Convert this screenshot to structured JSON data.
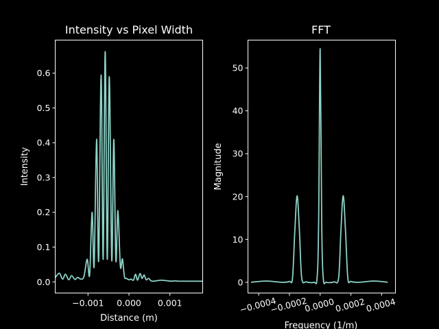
{
  "chart_data": [
    {
      "type": "line",
      "title": "Intensity vs Pixel Width",
      "xlabel": "Distance (m)",
      "ylabel": "Intensity",
      "xlim": [
        -0.0018,
        0.0018
      ],
      "ylim": [
        -0.032,
        0.695
      ],
      "xticks": [
        -0.001,
        0.0,
        0.001
      ],
      "xtick_labels": [
        "−0.001",
        "0.000",
        "0.001"
      ],
      "yticks": [
        0.0,
        0.1,
        0.2,
        0.3,
        0.4,
        0.5,
        0.6
      ],
      "ytick_labels": [
        "0.0",
        "0.1",
        "0.2",
        "0.3",
        "0.4",
        "0.5",
        "0.6"
      ],
      "grid": false,
      "line_color": "#8dd3c7",
      "series": [
        {
          "x": [
            -0.0018,
            -0.0017,
            -0.00162,
            -0.00155,
            -0.00147,
            -0.0014,
            -0.00132,
            -0.00125,
            -0.00118,
            -0.0011,
            -0.00102,
            -0.00096,
            -0.0009,
            -0.00085,
            -0.00079,
            -0.00074,
            -0.00068,
            -0.00063,
            -0.00058,
            -0.00053,
            -0.00048,
            -0.00042,
            -0.00037,
            -0.00032,
            -0.00027,
            -0.00021,
            -0.00016,
            -0.00011,
            -6e-05,
            0.0,
            5e-05,
            0.00011,
            0.00016,
            0.00021,
            0.00027,
            0.00032,
            0.00037,
            0.00042,
            0.00048,
            0.00054,
            0.0006,
            0.00066,
            0.00072,
            0.00079,
            0.00087,
            0.00095,
            0.00103,
            0.00112,
            0.0012,
            0.00128,
            0.00136,
            0.00144,
            0.00152,
            0.0016,
            0.0017,
            0.0018
          ],
          "y": [
            0.012,
            0.025,
            0.008,
            0.022,
            0.006,
            0.018,
            0.007,
            0.013,
            0.008,
            0.015,
            0.065,
            0.02,
            0.2,
            0.045,
            0.41,
            0.06,
            0.595,
            0.065,
            0.662,
            0.065,
            0.59,
            0.062,
            0.41,
            0.062,
            0.205,
            0.045,
            0.066,
            0.015,
            0.01,
            0.006,
            0.008,
            0.005,
            0.022,
            0.005,
            0.024,
            0.01,
            0.02,
            0.006,
            0.01,
            0.003,
            0.002,
            0.003,
            0.004,
            0.005,
            0.004,
            0.003,
            0.002,
            0.003,
            0.002,
            0.002,
            0.002,
            0.002,
            0.002,
            0.002,
            0.002,
            0.002
          ]
        }
      ]
    },
    {
      "type": "line",
      "title": "FFT",
      "xlabel": "Frequency (1/m)",
      "ylabel": "Magnitude",
      "xlim": [
        -0.00047,
        0.00049
      ],
      "ylim": [
        -2.5,
        56.5
      ],
      "xticks": [
        -0.0004,
        -0.0002,
        0.0,
        0.0002,
        0.0004
      ],
      "xtick_labels": [
        "−0.0004",
        "−0.0002",
        "0.0000",
        "0.0002",
        "0.0004"
      ],
      "yticks": [
        0,
        10,
        20,
        30,
        40,
        50
      ],
      "ytick_labels": [
        "0",
        "10",
        "20",
        "30",
        "40",
        "50"
      ],
      "xtick_rotation": -15,
      "grid": false,
      "line_color": "#8dd3c7",
      "series": [
        {
          "x": [
            -0.00045,
            -0.00035,
            -0.00025,
            -0.0002,
            -0.00018,
            -0.000165,
            -0.00015,
            -0.000135,
            -0.00012,
            -9e-05,
            -4e-05,
            -2e-05,
            -1e-05,
            0.0,
            1e-05,
            2e-05,
            4e-05,
            9e-05,
            0.00012,
            0.000135,
            0.00015,
            0.000165,
            0.00018,
            0.0002,
            0.00025,
            0.00035,
            0.00044
          ],
          "y": [
            0.0,
            0.3,
            0.0,
            0.2,
            1.0,
            12.0,
            20.2,
            12.0,
            1.0,
            0.1,
            0.0,
            1.0,
            14.0,
            54.5,
            14.0,
            1.0,
            0.0,
            0.1,
            1.0,
            12.0,
            20.2,
            12.0,
            1.0,
            0.2,
            0.0,
            0.3,
            0.0
          ]
        }
      ]
    }
  ]
}
